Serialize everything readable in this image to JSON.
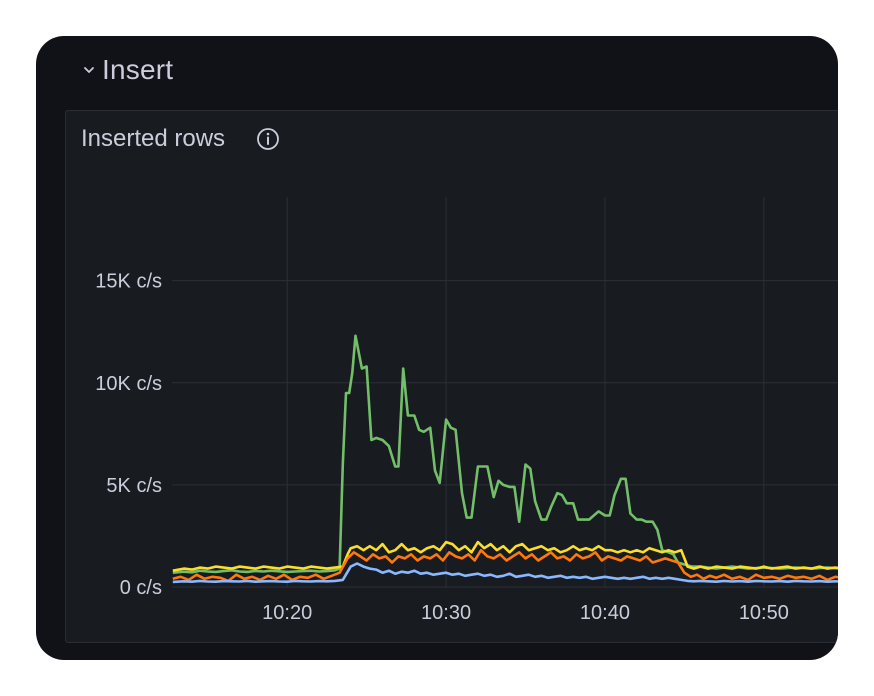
{
  "row": {
    "title": "Insert"
  },
  "panel": {
    "title": "Inserted rows"
  },
  "icons": {
    "collapse": "chevron-down-icon",
    "info": "info-icon"
  },
  "colors": {
    "background": "#111217",
    "panel_bg": "#181b1f",
    "grid": "#2c3038",
    "text": "#ccccdc"
  },
  "chart_data": {
    "type": "line",
    "title": "Inserted rows",
    "ylim": [
      0,
      19000
    ],
    "y_ticks": [
      {
        "value": 0,
        "label": "0 c/s"
      },
      {
        "value": 5000,
        "label": "5K c/s"
      },
      {
        "value": 10000,
        "label": "10K c/s"
      },
      {
        "value": 15000,
        "label": "15K c/s"
      }
    ],
    "x_ticks": [
      {
        "value": 20,
        "label": "10:20"
      },
      {
        "value": 30,
        "label": "10:30"
      },
      {
        "value": 40,
        "label": "10:40"
      },
      {
        "value": 50,
        "label": "10:50"
      }
    ],
    "xlim": [
      12.75,
      55.8
    ],
    "grid": true,
    "series": [
      {
        "color": "#73bf69",
        "x": [
          12.8,
          13.5,
          14.0,
          14.5,
          15.0,
          15.5,
          16.0,
          16.5,
          17.0,
          17.5,
          18.0,
          18.5,
          19.0,
          19.5,
          20.0,
          20.5,
          21.0,
          21.5,
          22.0,
          22.5,
          23.0,
          23.3,
          23.5,
          23.7,
          23.9,
          24.1,
          24.3,
          24.5,
          24.7,
          25.0,
          25.3,
          25.6,
          26.0,
          26.4,
          26.8,
          27.0,
          27.3,
          27.6,
          28.0,
          28.3,
          28.6,
          29.0,
          29.3,
          29.6,
          30.0,
          30.3,
          30.6,
          31.0,
          31.3,
          31.6,
          32.0,
          32.3,
          32.6,
          33.0,
          33.3,
          33.6,
          34.0,
          34.3,
          34.6,
          35.0,
          35.3,
          35.6,
          36.0,
          36.3,
          36.6,
          37.0,
          37.3,
          37.6,
          38.0,
          38.3,
          38.6,
          39.0,
          39.3,
          39.6,
          40.0,
          40.3,
          40.6,
          41.0,
          41.3,
          41.6,
          42.0,
          42.3,
          42.6,
          43.0,
          43.3,
          43.6,
          44.0,
          44.3,
          44.6,
          45.0,
          45.5,
          46.0,
          47.0,
          48.0,
          49.0,
          50.0,
          51.0,
          52.0,
          53.0,
          54.0,
          55.0,
          55.8
        ],
        "values": [
          700,
          750,
          720,
          800,
          760,
          740,
          780,
          820,
          760,
          740,
          790,
          760,
          800,
          770,
          740,
          760,
          780,
          800,
          760,
          780,
          820,
          900,
          6000,
          9500,
          9500,
          10500,
          12300,
          11500,
          10700,
          10800,
          7200,
          7300,
          7200,
          6900,
          5900,
          5900,
          10700,
          8400,
          8400,
          7700,
          7600,
          7800,
          5700,
          5100,
          8200,
          7800,
          7700,
          4600,
          3400,
          3400,
          5900,
          5900,
          5900,
          4400,
          5200,
          5000,
          4900,
          4900,
          3200,
          6000,
          5800,
          4200,
          3300,
          3300,
          3900,
          4600,
          4500,
          4100,
          4100,
          3300,
          3300,
          3300,
          3500,
          3700,
          3500,
          3500,
          4500,
          5300,
          5300,
          3600,
          3300,
          3300,
          3200,
          3200,
          2800,
          1800,
          1700,
          1600,
          1200,
          1100,
          1000,
          1000,
          900,
          1000,
          900,
          950,
          900,
          950,
          900,
          950,
          900,
          880
        ]
      },
      {
        "color": "#fade2a",
        "x": [
          12.8,
          13.5,
          14.0,
          14.5,
          15.0,
          15.5,
          16.0,
          16.5,
          17.0,
          17.5,
          18.0,
          18.5,
          19.0,
          19.5,
          20.0,
          20.5,
          21.0,
          21.5,
          22.0,
          22.5,
          23.0,
          23.5,
          23.8,
          24.0,
          24.4,
          24.8,
          25.2,
          25.6,
          26.0,
          26.4,
          26.8,
          27.2,
          27.6,
          28.0,
          28.4,
          28.8,
          29.2,
          29.6,
          30.0,
          30.4,
          30.8,
          31.2,
          31.6,
          32.0,
          32.4,
          32.8,
          33.2,
          33.6,
          34.0,
          34.4,
          34.8,
          35.2,
          35.6,
          36.0,
          36.4,
          36.8,
          37.2,
          37.6,
          38.0,
          38.4,
          38.8,
          39.2,
          39.6,
          40.0,
          40.4,
          40.8,
          41.2,
          41.6,
          42.0,
          42.4,
          42.8,
          43.2,
          43.6,
          44.0,
          44.4,
          44.8,
          45.2,
          45.6,
          46.0,
          46.5,
          47.0,
          47.5,
          48.0,
          48.5,
          49.0,
          49.5,
          50.0,
          50.5,
          51.0,
          51.5,
          52.0,
          52.5,
          53.0,
          53.5,
          54.0,
          54.5,
          55.0,
          55.8
        ],
        "values": [
          800,
          900,
          850,
          950,
          900,
          1000,
          950,
          900,
          1000,
          950,
          900,
          1000,
          950,
          900,
          1000,
          950,
          900,
          1000,
          950,
          900,
          950,
          1000,
          1600,
          1900,
          2000,
          1800,
          2000,
          1800,
          2100,
          1700,
          1800,
          2100,
          1800,
          1900,
          1700,
          1900,
          2000,
          1800,
          2200,
          2100,
          1800,
          2000,
          1700,
          2200,
          1900,
          2100,
          1800,
          2000,
          1700,
          2000,
          2100,
          1800,
          1900,
          2000,
          1800,
          1900,
          1700,
          1800,
          2000,
          1800,
          1900,
          1800,
          2000,
          1800,
          1800,
          1700,
          1800,
          1700,
          1800,
          1700,
          1900,
          1800,
          1700,
          1800,
          1700,
          1800,
          1000,
          900,
          1000,
          900,
          1000,
          950,
          900,
          1000,
          950,
          900,
          1000,
          900,
          950,
          1000,
          900,
          950,
          900,
          1000,
          900,
          950,
          900,
          1000
        ]
      },
      {
        "color": "#ff780a",
        "x": [
          12.8,
          13.3,
          13.8,
          14.3,
          14.8,
          15.3,
          15.8,
          16.3,
          16.8,
          17.3,
          17.8,
          18.3,
          18.8,
          19.3,
          19.8,
          20.3,
          20.8,
          21.3,
          21.8,
          22.3,
          22.8,
          23.3,
          23.8,
          24.2,
          24.6,
          25.0,
          25.4,
          25.8,
          26.2,
          26.6,
          27.0,
          27.4,
          27.8,
          28.2,
          28.6,
          29.0,
          29.4,
          29.8,
          30.2,
          30.6,
          31.0,
          31.4,
          31.8,
          32.2,
          32.6,
          33.0,
          33.4,
          33.8,
          34.2,
          34.6,
          35.0,
          35.4,
          35.8,
          36.2,
          36.6,
          37.0,
          37.4,
          37.8,
          38.2,
          38.6,
          39.0,
          39.4,
          39.8,
          40.2,
          40.6,
          41.0,
          41.4,
          41.8,
          42.2,
          42.6,
          43.0,
          43.4,
          43.8,
          44.2,
          44.6,
          45.0,
          45.4,
          45.8,
          46.2,
          46.6,
          47.0,
          47.5,
          48.0,
          48.5,
          49.0,
          49.5,
          50.0,
          50.5,
          51.0,
          51.5,
          52.0,
          52.5,
          53.0,
          53.5,
          54.0,
          54.5,
          55.0,
          55.8
        ],
        "values": [
          400,
          500,
          350,
          600,
          400,
          500,
          450,
          300,
          600,
          400,
          500,
          350,
          550,
          400,
          600,
          350,
          500,
          450,
          600,
          400,
          550,
          700,
          1400,
          1700,
          1500,
          1300,
          1600,
          1400,
          1500,
          1200,
          1500,
          1400,
          1600,
          1300,
          1500,
          1400,
          1600,
          1300,
          1700,
          1500,
          1400,
          1600,
          1300,
          1800,
          1500,
          1400,
          1600,
          1300,
          1500,
          1700,
          1400,
          1600,
          1300,
          1500,
          1700,
          1400,
          1500,
          1300,
          1600,
          1400,
          1500,
          1700,
          1300,
          1500,
          1400,
          1300,
          1500,
          1400,
          1300,
          1500,
          1200,
          1300,
          1400,
          1300,
          1200,
          700,
          500,
          600,
          400,
          550,
          450,
          600,
          400,
          500,
          350,
          600,
          450,
          500,
          400,
          550,
          450,
          500,
          400,
          550,
          350,
          500,
          450,
          400
        ]
      },
      {
        "color": "#8ab8ff",
        "x": [
          12.8,
          13.5,
          14.0,
          14.5,
          15.0,
          15.5,
          16.0,
          16.5,
          17.0,
          17.5,
          18.0,
          18.5,
          19.0,
          19.5,
          20.0,
          20.5,
          21.0,
          21.5,
          22.0,
          22.5,
          23.0,
          23.5,
          24.0,
          24.4,
          24.8,
          25.2,
          25.6,
          26.0,
          26.4,
          26.8,
          27.2,
          27.6,
          28.0,
          28.4,
          28.8,
          29.2,
          29.6,
          30.0,
          30.4,
          30.8,
          31.2,
          31.6,
          32.0,
          32.4,
          32.8,
          33.2,
          33.6,
          34.0,
          34.4,
          34.8,
          35.2,
          35.6,
          36.0,
          36.4,
          36.8,
          37.2,
          37.6,
          38.0,
          38.4,
          38.8,
          39.2,
          39.6,
          40.0,
          40.4,
          40.8,
          41.2,
          41.6,
          42.0,
          42.4,
          42.8,
          43.2,
          43.6,
          44.0,
          44.4,
          44.8,
          45.2,
          45.6,
          46.0,
          46.5,
          47.0,
          47.5,
          48.0,
          48.5,
          49.0,
          49.5,
          50.0,
          50.5,
          51.0,
          51.5,
          52.0,
          52.5,
          53.0,
          53.5,
          54.0,
          54.5,
          55.0,
          55.8
        ],
        "values": [
          250,
          280,
          260,
          300,
          270,
          260,
          290,
          280,
          270,
          300,
          260,
          280,
          290,
          270,
          260,
          300,
          280,
          270,
          290,
          280,
          300,
          350,
          1000,
          1150,
          1000,
          900,
          850,
          700,
          800,
          650,
          750,
          700,
          800,
          650,
          700,
          600,
          650,
          700,
          600,
          650,
          550,
          600,
          650,
          550,
          600,
          500,
          550,
          650,
          500,
          550,
          600,
          500,
          550,
          450,
          500,
          550,
          450,
          500,
          450,
          500,
          400,
          450,
          500,
          450,
          400,
          450,
          400,
          450,
          500,
          400,
          450,
          400,
          450,
          400,
          350,
          300,
          280,
          300,
          280,
          260,
          300,
          270,
          290,
          260,
          300,
          280,
          270,
          290,
          260,
          300,
          280,
          270,
          290,
          260,
          280,
          270,
          260
        ]
      }
    ]
  }
}
